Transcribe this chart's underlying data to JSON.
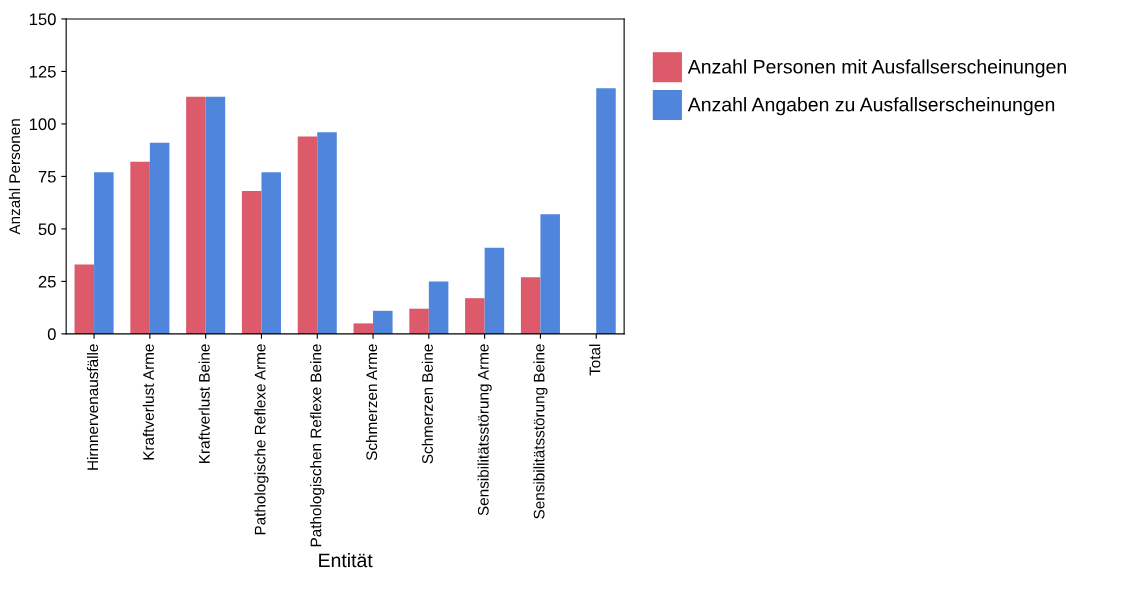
{
  "chart_data": {
    "type": "bar",
    "xlabel": "Entität",
    "ylabel": "Anzahl Personen",
    "categories": [
      "Hirnnervenausfälle",
      "Kraftverlust Arme",
      "Kraftverlust Beine",
      "Pathologische Reflexe Arme",
      "Pathologischen Reflexe Beine",
      "Schmerzen Arme",
      "Schmerzen Beine",
      "Sensibilitätsstörung Arme",
      "Sensibilitätsstörung Beine",
      "Total"
    ],
    "series": [
      {
        "name": "Anzahl Personen mit Ausfallserscheinungen",
        "color": "#dc5a6a",
        "values": [
          33,
          82,
          113,
          68,
          94,
          5,
          12,
          17,
          27,
          null
        ]
      },
      {
        "name": "Anzahl Angaben zu Ausfallserscheinungen",
        "color": "#4f86dc",
        "values": [
          77,
          91,
          113,
          77,
          96,
          11,
          25,
          41,
          57,
          117
        ]
      }
    ],
    "ylim": [
      0,
      150
    ],
    "yticks": [
      0,
      25,
      50,
      75,
      100,
      125,
      150
    ],
    "grid": false,
    "legend": "right"
  }
}
